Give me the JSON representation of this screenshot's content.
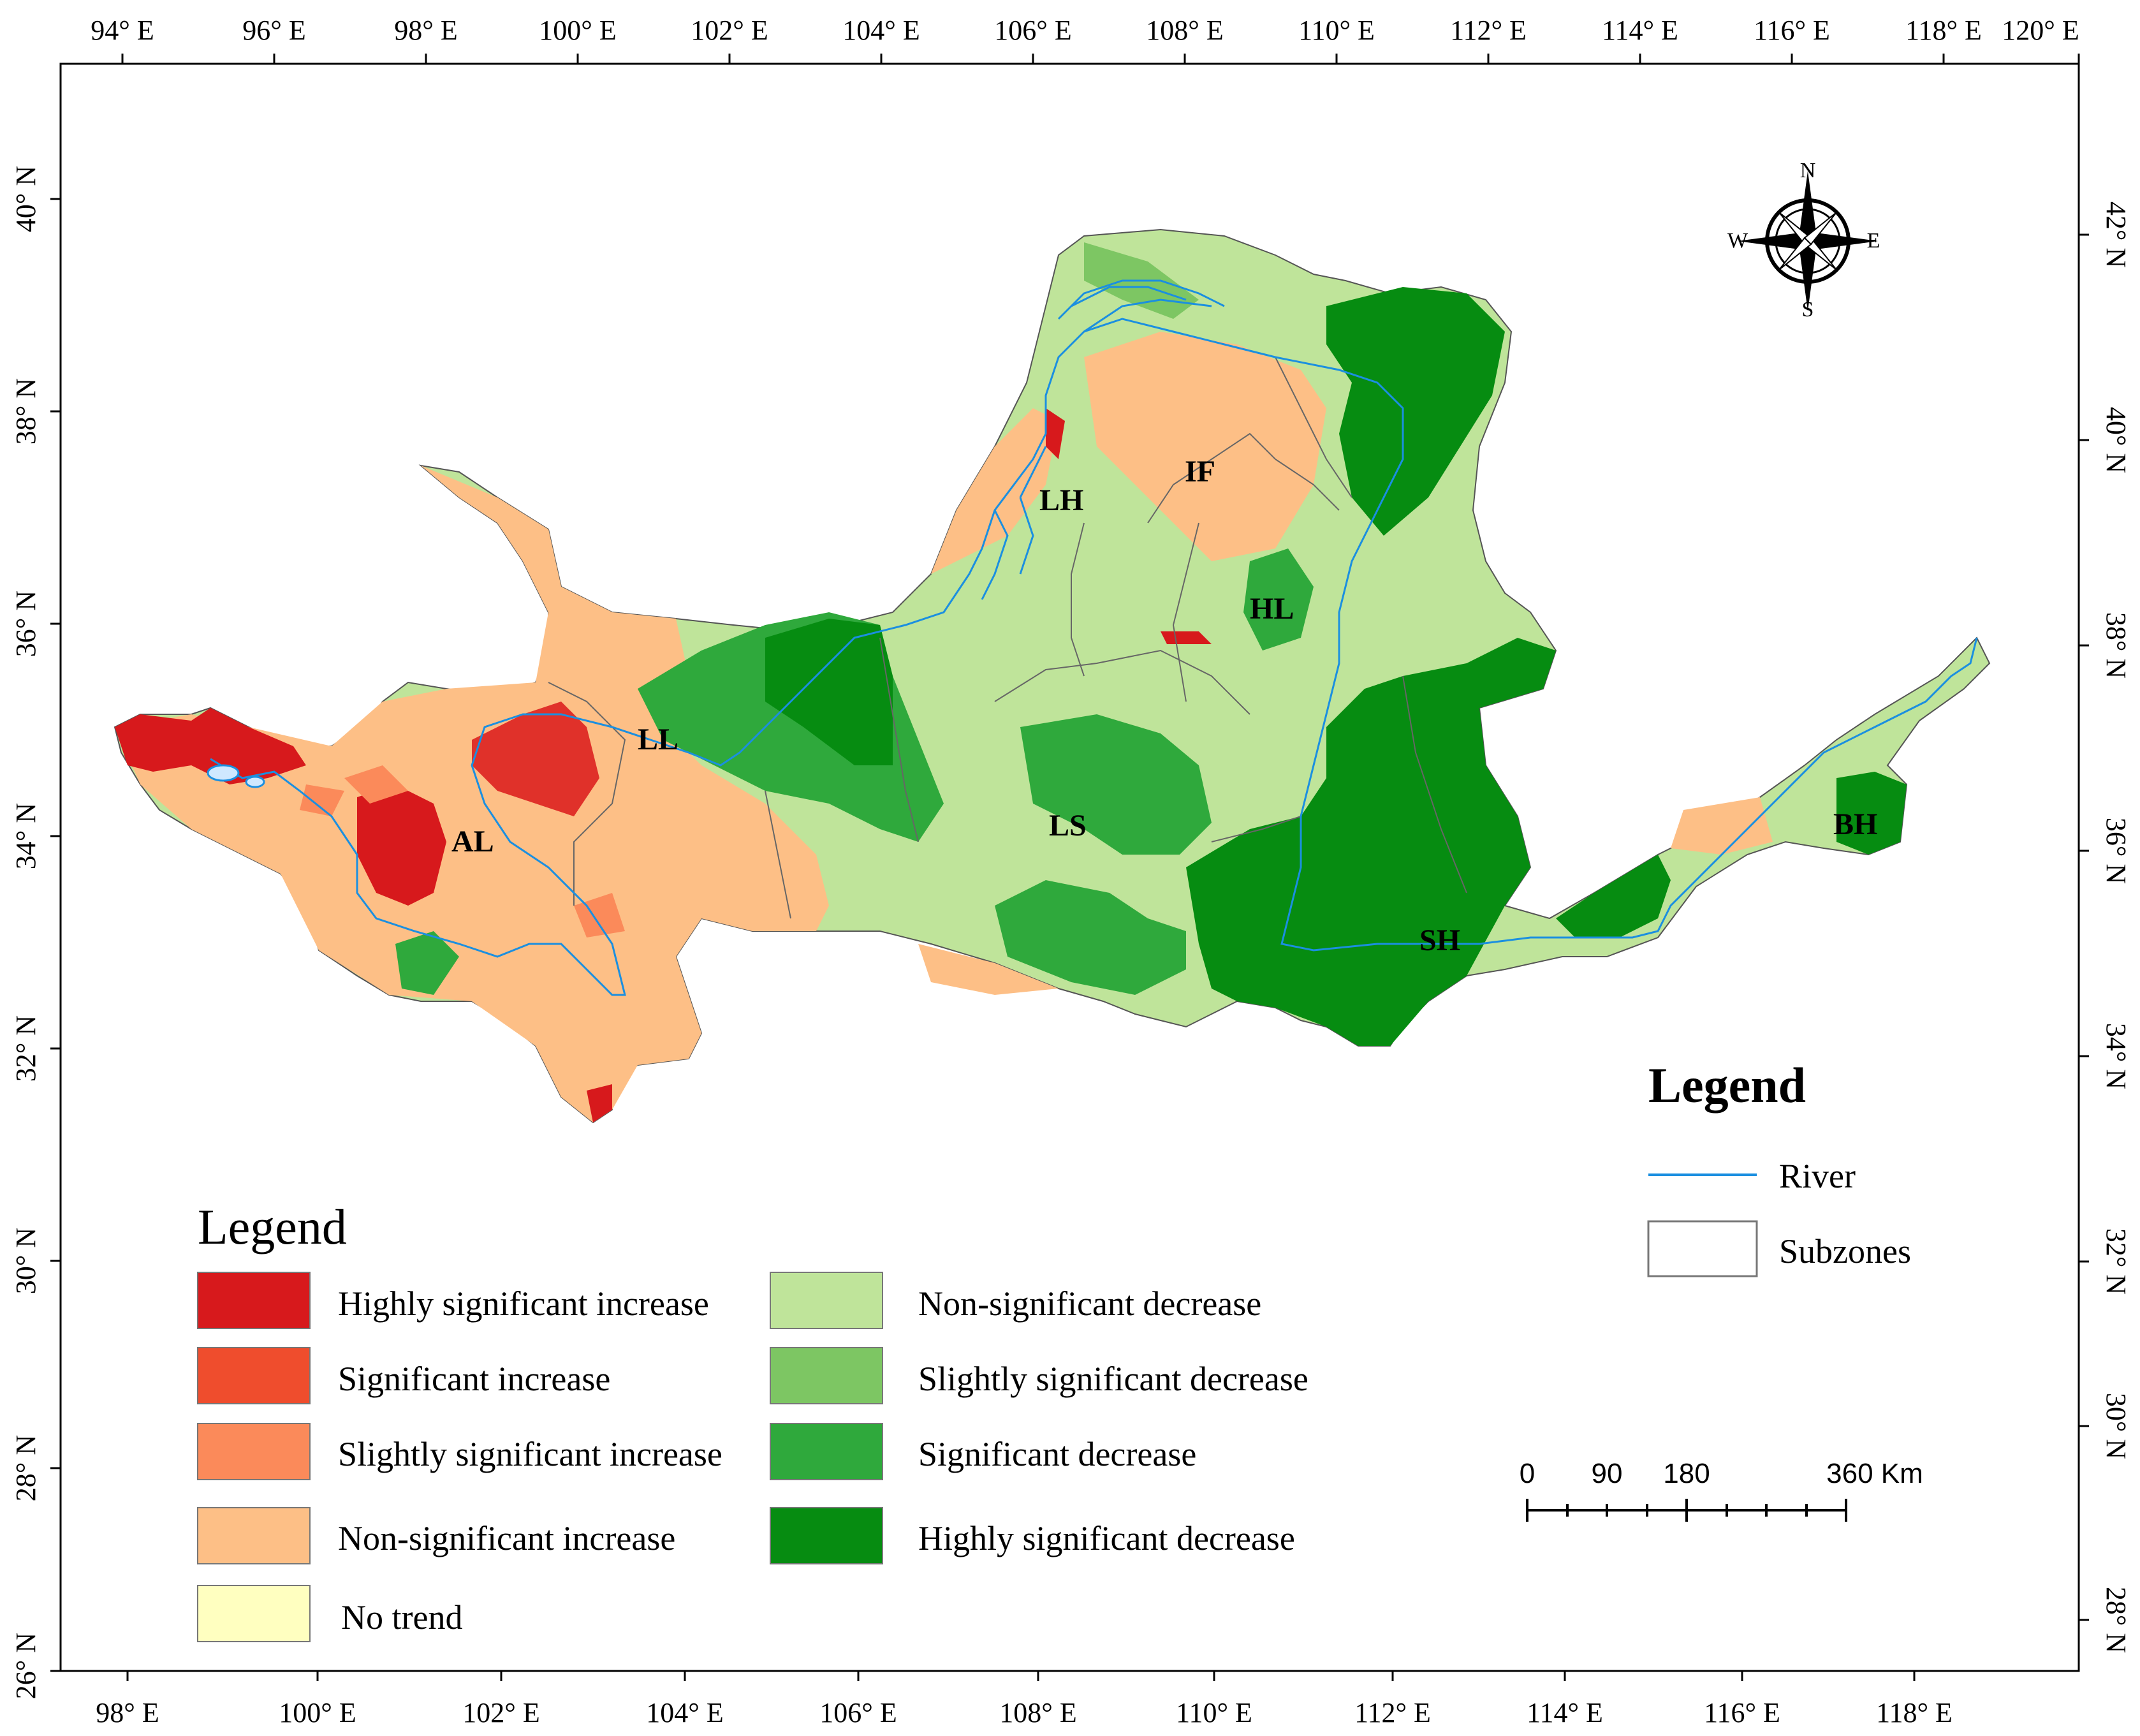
{
  "map": {
    "top_axis_labels": [
      "94° E",
      "96° E",
      "98° E",
      "100° E",
      "102° E",
      "104° E",
      "106° E",
      "108° E",
      "110° E",
      "112° E",
      "114° E",
      "116° E",
      "118° E",
      "120° E"
    ],
    "bottom_axis_labels": [
      "98° E",
      "100° E",
      "102° E",
      "104° E",
      "106° E",
      "108° E",
      "110° E",
      "112° E",
      "114° E",
      "116° E",
      "118° E"
    ],
    "left_axis_labels": [
      "40° N",
      "38° N",
      "36° N",
      "34° N",
      "32° N",
      "30° N",
      "28° N",
      "26° N"
    ],
    "right_axis_labels": [
      "42° N",
      "40° N",
      "38° N",
      "36° N",
      "34° N",
      "32° N",
      "30° N",
      "28° N"
    ],
    "zones": [
      "LH",
      "IF",
      "HL",
      "LL",
      "AL",
      "LS",
      "SH",
      "BH"
    ],
    "compass": {
      "north": "N",
      "south": "S",
      "east": "E",
      "west": "W"
    }
  },
  "legend_main": {
    "title": "Legend",
    "items": [
      {
        "label": "Highly significant increase",
        "color": "#d7191c"
      },
      {
        "label": "Significant increase",
        "color": "#ef4d2d"
      },
      {
        "label": "Slightly significant increase",
        "color": "#fb8a5a"
      },
      {
        "label": "Non-significant increase",
        "color": "#fdbf86"
      },
      {
        "label": "No trend",
        "color": "#ffffc0"
      },
      {
        "label": "Non-significant decrease",
        "color": "#bfe49a"
      },
      {
        "label": "Slightly significant decrease",
        "color": "#7dc663"
      },
      {
        "label": "Significant decrease",
        "color": "#2fa93c"
      },
      {
        "label": "Highly significant decrease",
        "color": "#068c11"
      }
    ]
  },
  "legend_secondary": {
    "title": "Legend",
    "river_label": "River",
    "subzones_label": "Subzones",
    "river_color": "#1b8fe0"
  },
  "scale_bar": {
    "labels": [
      "0",
      "90",
      "180",
      "360 Km"
    ]
  }
}
